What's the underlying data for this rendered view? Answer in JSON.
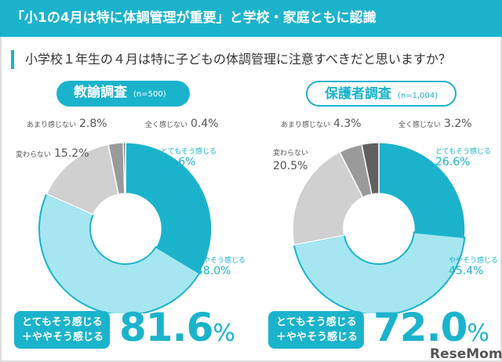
{
  "header": {
    "title": "「小1の4月は特に体調管理が重要」と学校・家庭ともに認識"
  },
  "question": "小学校１年生の４月は特に子どもの体調管理に注意すべきだと思いますか？",
  "logo": "ReseMom",
  "chart_data": [
    {
      "type": "pie",
      "variant": "donut",
      "title": "教諭調査",
      "subtitle": "(n=500)",
      "categories": [
        "とてもそう感じる",
        "ややそう感じる",
        "変わらない",
        "あまり感じない",
        "全く感じない"
      ],
      "values": [
        33.6,
        48.0,
        15.2,
        2.8,
        0.4
      ],
      "labels": [
        "33.6%",
        "48.0%",
        "15.2%",
        "2.8%",
        "0.4%"
      ],
      "colors": [
        "#1bb3cc",
        "#a6e6f1",
        "#d0d0d0",
        "#9a9a9a",
        "#606060"
      ],
      "summary_label": [
        "とてもそう感じる",
        "＋ややそう感じる"
      ],
      "summary_value": "81.6",
      "summary_unit": "%"
    },
    {
      "type": "pie",
      "variant": "donut",
      "title": "保護者調査",
      "subtitle": "(n=1,004)",
      "categories": [
        "とてもそう感じる",
        "ややそう感じる",
        "変わらない",
        "あまり感じない",
        "全く感じない"
      ],
      "values": [
        26.6,
        45.4,
        20.5,
        4.3,
        3.2
      ],
      "labels": [
        "26.6%",
        "45.4%",
        "20.5%",
        "4.3%",
        "3.2%"
      ],
      "colors": [
        "#1bb3cc",
        "#a6e6f1",
        "#d0d0d0",
        "#9a9a9a",
        "#606060"
      ],
      "summary_label": [
        "とてもそう感じる",
        "＋ややそう感じる"
      ],
      "summary_value": "72.0",
      "summary_unit": "%"
    }
  ]
}
